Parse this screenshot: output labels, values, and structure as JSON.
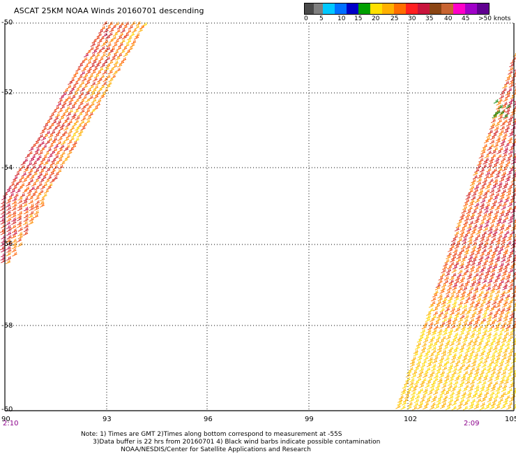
{
  "title": "ASCAT 25KM NOAA Winds 20160701 descending",
  "legend": {
    "labels": [
      "0",
      "5",
      "10",
      "15",
      "20",
      "25",
      "30",
      "35",
      "40",
      "45",
      ">50 knots"
    ],
    "colors": [
      "#4a4a4a",
      "#7f7f7f",
      "#00c8ff",
      "#0070ff",
      "#0000c8",
      "#00a000",
      "#ffe000",
      "#ffb000",
      "#ff6e00",
      "#ff2020",
      "#c8143c",
      "#8b4513",
      "#c86432",
      "#ff00c8",
      "#a000c8",
      "#600090"
    ]
  },
  "map": {
    "lat_labels": [
      "-50",
      "-52",
      "-54",
      "-56",
      "-58",
      "-60"
    ],
    "lon_labels": [
      "90",
      "93",
      "96",
      "99",
      "102",
      "105"
    ],
    "times": [
      "2:10",
      "2:09"
    ]
  },
  "note": {
    "line1": "Note: 1) Times are GMT 2)Times along bottom correspond to measurement at -55S",
    "line2": "      3)Data buffer is 22 hrs from 20160701 4) Black wind barbs indicate possible contamination",
    "line3": "                    NOAA/NESDIS/Center for Satellite Applications and Research"
  }
}
